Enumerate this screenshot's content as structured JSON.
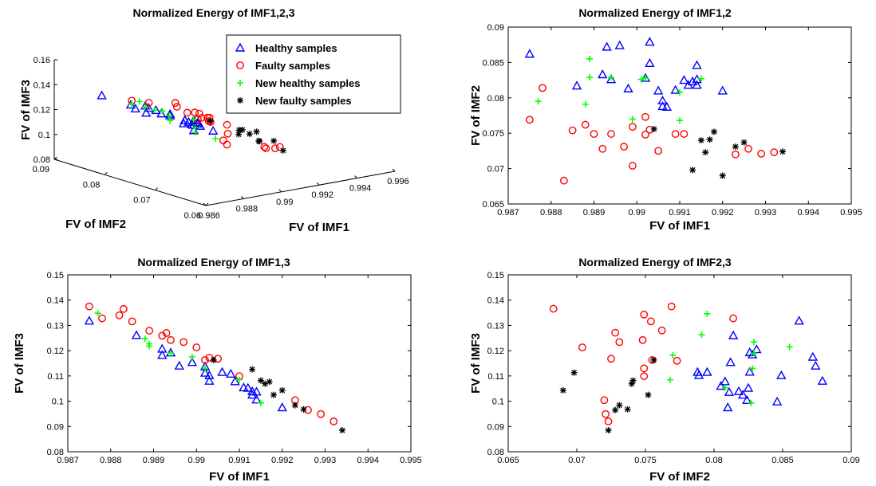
{
  "colors": {
    "healthy": "#0000ff",
    "faulty": "#ff0000",
    "new_healthy": "#00ff00",
    "new_faulty": "#000000"
  },
  "legend": {
    "placement": "top-right of first panel",
    "entries": [
      {
        "key": "healthy",
        "label": "Healthy samples",
        "marker": "triangle"
      },
      {
        "key": "faulty",
        "label": "Faulty samples",
        "marker": "circle"
      },
      {
        "key": "new_healthy",
        "label": "New healthy samples",
        "marker": "plus"
      },
      {
        "key": "new_faulty",
        "label": "New faulty samples",
        "marker": "star"
      }
    ]
  },
  "chart_data": [
    {
      "type": "scatter",
      "projection": "3d",
      "title": "Normalized Energy of IMF1,2,3",
      "xlabel": "FV of IMF1",
      "ylabel": "FV of IMF2",
      "zlabel": "FV of IMF3",
      "xlim": [
        0.986,
        0.996
      ],
      "ylim": [
        0.06,
        0.09
      ],
      "zlim": [
        0.08,
        0.16
      ],
      "xticks": [
        "0.986",
        "0.988",
        "0.99",
        "0.992",
        "0.994",
        "0.996"
      ],
      "yticks": [
        "0.06",
        "0.07",
        "0.08",
        "0.09"
      ],
      "zticks": [
        "0.08",
        "0.1",
        "0.12",
        "0.14",
        "0.16"
      ],
      "grid": false
    },
    {
      "type": "scatter",
      "title": "Normalized Energy of IMF1,2",
      "xlabel": "FV of IMF1",
      "ylabel": "FV of IMF2",
      "xlim": [
        0.987,
        0.995
      ],
      "ylim": [
        0.065,
        0.09
      ],
      "xticks": [
        "0.987",
        "0.988",
        "0.989",
        "0.99",
        "0.991",
        "0.992",
        "0.993",
        "0.994",
        "0.995"
      ],
      "yticks": [
        "0.065",
        "0.07",
        "0.075",
        "0.08",
        "0.085",
        "0.09"
      ],
      "grid": false,
      "series": [
        {
          "name": "Healthy samples",
          "key": "healthy",
          "points": [
            [
              0.9875,
              0.0862
            ],
            [
              0.9886,
              0.0817
            ],
            [
              0.9892,
              0.0833
            ],
            [
              0.9893,
              0.0872
            ],
            [
              0.9894,
              0.0826
            ],
            [
              0.9896,
              0.0874
            ],
            [
              0.9898,
              0.0813
            ],
            [
              0.9902,
              0.0828
            ],
            [
              0.9903,
              0.0849
            ],
            [
              0.9903,
              0.0879
            ],
            [
              0.9905,
              0.081
            ],
            [
              0.9906,
              0.0796
            ],
            [
              0.9906,
              0.0788
            ],
            [
              0.9907,
              0.0787
            ],
            [
              0.9909,
              0.0811
            ],
            [
              0.9911,
              0.0825
            ],
            [
              0.9912,
              0.0818
            ],
            [
              0.9913,
              0.0823
            ],
            [
              0.9914,
              0.0846
            ],
            [
              0.9914,
              0.0818
            ],
            [
              0.9914,
              0.0826
            ],
            [
              0.992,
              0.081
            ]
          ]
        },
        {
          "name": "Faulty samples",
          "key": "faulty",
          "points": [
            [
              0.9875,
              0.0769
            ],
            [
              0.9878,
              0.0814
            ],
            [
              0.9883,
              0.0683
            ],
            [
              0.9885,
              0.0754
            ],
            [
              0.9888,
              0.0762
            ],
            [
              0.989,
              0.0749
            ],
            [
              0.9892,
              0.0728
            ],
            [
              0.9894,
              0.0749
            ],
            [
              0.9897,
              0.0731
            ],
            [
              0.9899,
              0.0759
            ],
            [
              0.9899,
              0.0704
            ],
            [
              0.9902,
              0.0773
            ],
            [
              0.9902,
              0.0748
            ],
            [
              0.9903,
              0.0755
            ],
            [
              0.9905,
              0.0725
            ],
            [
              0.9909,
              0.0749
            ],
            [
              0.9911,
              0.0749
            ],
            [
              0.9923,
              0.072
            ],
            [
              0.9926,
              0.0728
            ],
            [
              0.9929,
              0.0721
            ],
            [
              0.9932,
              0.0723
            ]
          ]
        },
        {
          "name": "New healthy samples",
          "key": "new_healthy",
          "points": [
            [
              0.9877,
              0.0795
            ],
            [
              0.9888,
              0.0791
            ],
            [
              0.9889,
              0.0855
            ],
            [
              0.9889,
              0.0829
            ],
            [
              0.9894,
              0.0829
            ],
            [
              0.9899,
              0.077
            ],
            [
              0.9901,
              0.0826
            ],
            [
              0.9902,
              0.0828
            ],
            [
              0.991,
              0.0808
            ],
            [
              0.991,
              0.0768
            ],
            [
              0.9915,
              0.0827
            ]
          ]
        },
        {
          "name": "New faulty samples",
          "key": "new_faulty",
          "points": [
            [
              0.9904,
              0.0756
            ],
            [
              0.9913,
              0.0698
            ],
            [
              0.9915,
              0.074
            ],
            [
              0.9916,
              0.0723
            ],
            [
              0.9917,
              0.0741
            ],
            [
              0.9918,
              0.0752
            ],
            [
              0.992,
              0.069
            ],
            [
              0.9923,
              0.0731
            ],
            [
              0.9925,
              0.0737
            ],
            [
              0.9934,
              0.0724
            ]
          ]
        }
      ]
    },
    {
      "type": "scatter",
      "title": "Normalized Energy of IMF1,3",
      "xlabel": "FV of IMF1",
      "ylabel": "FV of IMF3",
      "xlim": [
        0.987,
        0.995
      ],
      "ylim": [
        0.08,
        0.15
      ],
      "xticks": [
        "0.987",
        "0.988",
        "0.989",
        "0.99",
        "0.991",
        "0.992",
        "0.993",
        "0.994",
        "0.995"
      ],
      "yticks": [
        "0.08",
        "0.09",
        "0.1",
        "0.11",
        "0.12",
        "0.13",
        "0.14",
        "0.15"
      ],
      "grid": false,
      "series": [
        {
          "name": "Healthy samples",
          "key": "healthy",
          "points": [
            [
              0.9875,
              0.1318
            ],
            [
              0.9886,
              0.1261
            ],
            [
              0.9892,
              0.1207
            ],
            [
              0.9892,
              0.1182
            ],
            [
              0.9894,
              0.1192
            ],
            [
              0.9896,
              0.114
            ],
            [
              0.9899,
              0.1154
            ],
            [
              0.9902,
              0.1137
            ],
            [
              0.9902,
              0.1112
            ],
            [
              0.9903,
              0.108
            ],
            [
              0.9903,
              0.1102
            ],
            [
              0.9906,
              0.1115
            ],
            [
              0.9908,
              0.1108
            ],
            [
              0.9909,
              0.1078
            ],
            [
              0.9911,
              0.1054
            ],
            [
              0.9912,
              0.1052
            ],
            [
              0.9913,
              0.1039
            ],
            [
              0.9913,
              0.1025
            ],
            [
              0.9914,
              0.1006
            ],
            [
              0.9914,
              0.1037
            ],
            [
              0.992,
              0.0975
            ]
          ]
        },
        {
          "name": "Faulty samples",
          "key": "faulty",
          "points": [
            [
              0.9875,
              0.1375
            ],
            [
              0.9878,
              0.1328
            ],
            [
              0.9882,
              0.134
            ],
            [
              0.9883,
              0.1365
            ],
            [
              0.9885,
              0.1316
            ],
            [
              0.9889,
              0.1279
            ],
            [
              0.9892,
              0.1259
            ],
            [
              0.9893,
              0.127
            ],
            [
              0.9894,
              0.1242
            ],
            [
              0.9897,
              0.1234
            ],
            [
              0.99,
              0.1213
            ],
            [
              0.9902,
              0.1163
            ],
            [
              0.9903,
              0.1172
            ],
            [
              0.9905,
              0.1168
            ],
            [
              0.991,
              0.1099
            ],
            [
              0.9923,
              0.1004
            ],
            [
              0.9926,
              0.0965
            ],
            [
              0.9929,
              0.0949
            ],
            [
              0.9932,
              0.092
            ]
          ]
        },
        {
          "name": "New healthy samples",
          "key": "new_healthy",
          "points": [
            [
              0.9877,
              0.1348
            ],
            [
              0.9888,
              0.1247
            ],
            [
              0.9889,
              0.1218
            ],
            [
              0.9889,
              0.1227
            ],
            [
              0.9894,
              0.119
            ],
            [
              0.9899,
              0.1175
            ],
            [
              0.9902,
              0.113
            ],
            [
              0.991,
              0.1085
            ],
            [
              0.9915,
              0.0993
            ]
          ]
        },
        {
          "name": "New faulty samples",
          "key": "new_faulty",
          "points": [
            [
              0.9904,
              0.1163
            ],
            [
              0.9913,
              0.1126
            ],
            [
              0.9915,
              0.1082
            ],
            [
              0.9916,
              0.1069
            ],
            [
              0.9917,
              0.1077
            ],
            [
              0.9918,
              0.1025
            ],
            [
              0.992,
              0.1043
            ],
            [
              0.9923,
              0.0984
            ],
            [
              0.9925,
              0.0968
            ],
            [
              0.9934,
              0.0885
            ]
          ]
        }
      ]
    },
    {
      "type": "scatter",
      "title": "Normalized Energy of IMF2,3",
      "xlabel": "FV of IMF2",
      "ylabel": "FV of IMF3",
      "xlim": [
        0.065,
        0.09
      ],
      "ylim": [
        0.08,
        0.15
      ],
      "xticks": [
        "0.065",
        "0.07",
        "0.075",
        "0.08",
        "0.085",
        "0.09"
      ],
      "yticks": [
        "0.08",
        "0.09",
        "0.1",
        "0.11",
        "0.12",
        "0.13",
        "0.14",
        "0.15"
      ],
      "grid": false,
      "series": [
        {
          "name": "Healthy samples",
          "key": "healthy",
          "points": [
            [
              0.0788,
              0.1115
            ],
            [
              0.0789,
              0.1103
            ],
            [
              0.0795,
              0.1115
            ],
            [
              0.0805,
              0.106
            ],
            [
              0.0808,
              0.1078
            ],
            [
              0.081,
              0.0975
            ],
            [
              0.0811,
              0.1036
            ],
            [
              0.0812,
              0.1154
            ],
            [
              0.0814,
              0.126
            ],
            [
              0.0818,
              0.1039
            ],
            [
              0.0821,
              0.1025
            ],
            [
              0.0824,
              0.1004
            ],
            [
              0.0825,
              0.1052
            ],
            [
              0.0826,
              0.1193
            ],
            [
              0.0826,
              0.1116
            ],
            [
              0.0828,
              0.1184
            ],
            [
              0.0831,
              0.1205
            ],
            [
              0.0846,
              0.0998
            ],
            [
              0.0849,
              0.1102
            ],
            [
              0.0862,
              0.1318
            ],
            [
              0.0872,
              0.1175
            ],
            [
              0.0874,
              0.114
            ],
            [
              0.0879,
              0.108
            ]
          ]
        },
        {
          "name": "Faulty samples",
          "key": "faulty",
          "points": [
            [
              0.0683,
              0.1366
            ],
            [
              0.0704,
              0.1213
            ],
            [
              0.072,
              0.1004
            ],
            [
              0.0721,
              0.0949
            ],
            [
              0.0723,
              0.092
            ],
            [
              0.0725,
              0.1168
            ],
            [
              0.0728,
              0.1271
            ],
            [
              0.0731,
              0.1234
            ],
            [
              0.0748,
              0.1242
            ],
            [
              0.0749,
              0.1099
            ],
            [
              0.0749,
              0.1343
            ],
            [
              0.0749,
              0.113
            ],
            [
              0.0754,
              0.1316
            ],
            [
              0.0755,
              0.1163
            ],
            [
              0.0762,
              0.128
            ],
            [
              0.0769,
              0.1375
            ],
            [
              0.0773,
              0.116
            ],
            [
              0.0814,
              0.1328
            ]
          ]
        },
        {
          "name": "New healthy samples",
          "key": "new_healthy",
          "points": [
            [
              0.0768,
              0.1085
            ],
            [
              0.077,
              0.1182
            ],
            [
              0.0791,
              0.1263
            ],
            [
              0.0795,
              0.1346
            ],
            [
              0.0808,
              0.1053
            ],
            [
              0.0827,
              0.0993
            ],
            [
              0.0828,
              0.113
            ],
            [
              0.0829,
              0.1234
            ],
            [
              0.0829,
              0.119
            ],
            [
              0.0855,
              0.1215
            ]
          ]
        },
        {
          "name": "New faulty samples",
          "key": "new_faulty",
          "points": [
            [
              0.069,
              0.1043
            ],
            [
              0.0698,
              0.1113
            ],
            [
              0.0723,
              0.0885
            ],
            [
              0.0728,
              0.0965
            ],
            [
              0.0731,
              0.0984
            ],
            [
              0.0737,
              0.0968
            ],
            [
              0.074,
              0.1069
            ],
            [
              0.0741,
              0.1082
            ],
            [
              0.0752,
              0.1025
            ],
            [
              0.0756,
              0.1163
            ]
          ]
        }
      ]
    }
  ]
}
